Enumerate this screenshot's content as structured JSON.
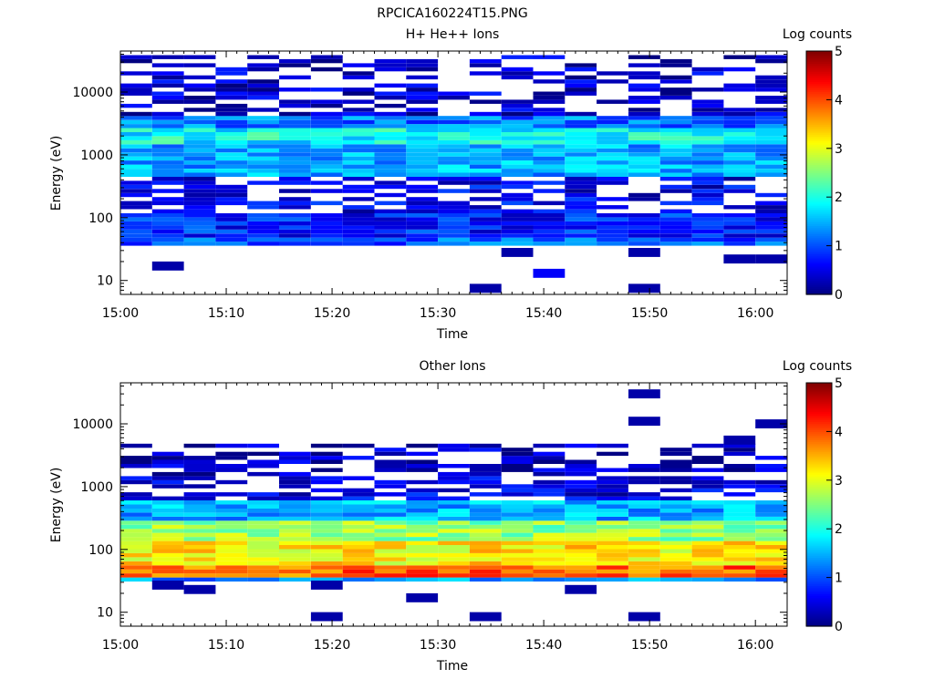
{
  "page_title": "RPCICA160224T15.PNG",
  "colorbar_ticks": [
    "0",
    "1",
    "2",
    "3",
    "4",
    "5"
  ],
  "chart_data": [
    {
      "type": "heatmap",
      "title": "H+ He++ Ions",
      "xlabel": "Time",
      "ylabel": "Energy (eV)",
      "colorbar_label": "Log counts",
      "colorscale": "jet",
      "zlim": [
        0,
        5
      ],
      "y_scale": "log",
      "ylim": [
        6,
        45000
      ],
      "xlim": [
        "15:00",
        "16:03"
      ],
      "x_ticks": [
        "15:00",
        "15:10",
        "15:20",
        "15:30",
        "15:40",
        "15:50",
        "16:00"
      ],
      "y_ticks": [
        "10",
        "100",
        "1000",
        "10000"
      ],
      "time_bins": [
        "15:00",
        "15:03",
        "15:06",
        "15:09",
        "15:12",
        "15:15",
        "15:18",
        "15:21",
        "15:24",
        "15:27",
        "15:30",
        "15:33",
        "15:36",
        "15:39",
        "15:42",
        "15:45",
        "15:48",
        "15:51",
        "15:54",
        "15:57",
        "16:00"
      ],
      "band_profile": [
        {
          "emin": 38,
          "emax": 50,
          "level": 1.1
        },
        {
          "emin": 50,
          "emax": 120,
          "level": 0.75
        },
        {
          "emin": 120,
          "emax": 450,
          "level": 0.55
        },
        {
          "emin": 450,
          "emax": 1400,
          "level": 1.45
        },
        {
          "emin": 1400,
          "emax": 2600,
          "level": 1.9
        },
        {
          "emin": 2600,
          "emax": 4200,
          "level": 1.2
        },
        {
          "emin": 4200,
          "emax": 40000,
          "level": 0.35
        }
      ],
      "sparse_points": [
        {
          "time": "15:03",
          "energy": 17,
          "level": 0.2
        },
        {
          "time": "15:33",
          "energy": 7.5,
          "level": 0.2
        },
        {
          "time": "15:36",
          "energy": 28,
          "level": 0.2
        },
        {
          "time": "15:39",
          "energy": 13,
          "level": 0.6
        },
        {
          "time": "15:48",
          "energy": 7.5,
          "level": 0.2
        },
        {
          "time": "15:48",
          "energy": 28,
          "level": 0.2
        },
        {
          "time": "15:57",
          "energy": 22,
          "level": 0.2
        },
        {
          "time": "16:00",
          "energy": 22,
          "level": 0.2
        }
      ]
    },
    {
      "type": "heatmap",
      "title": "Other Ions",
      "xlabel": "Time",
      "ylabel": "Energy (eV)",
      "colorbar_label": "Log counts",
      "colorscale": "jet",
      "zlim": [
        0,
        5
      ],
      "y_scale": "log",
      "ylim": [
        6,
        45000
      ],
      "xlim": [
        "15:00",
        "16:03"
      ],
      "x_ticks": [
        "15:00",
        "15:10",
        "15:20",
        "15:30",
        "15:40",
        "15:50",
        "16:00"
      ],
      "y_ticks": [
        "10",
        "100",
        "1000",
        "10000"
      ],
      "time_bins": [
        "15:00",
        "15:03",
        "15:06",
        "15:09",
        "15:12",
        "15:15",
        "15:18",
        "15:21",
        "15:24",
        "15:27",
        "15:30",
        "15:33",
        "15:36",
        "15:39",
        "15:42",
        "15:45",
        "15:48",
        "15:51",
        "15:54",
        "15:57",
        "16:00"
      ],
      "band_profile": [
        {
          "emin": 32,
          "emax": 38,
          "level": 1.3
        },
        {
          "emin": 38,
          "emax": 60,
          "level": 3.9
        },
        {
          "emin": 60,
          "emax": 130,
          "level": 3.2
        },
        {
          "emin": 130,
          "emax": 300,
          "level": 2.6
        },
        {
          "emin": 300,
          "emax": 600,
          "level": 1.5
        },
        {
          "emin": 600,
          "emax": 1400,
          "level": 0.5
        },
        {
          "emin": 1400,
          "emax": 5000,
          "level": 0.3
        }
      ],
      "sparse_points": [
        {
          "time": "15:03",
          "energy": 27,
          "level": 0.2
        },
        {
          "time": "15:06",
          "energy": 23,
          "level": 0.2
        },
        {
          "time": "15:18",
          "energy": 27,
          "level": 0.2
        },
        {
          "time": "15:18",
          "energy": 8.5,
          "level": 0.2
        },
        {
          "time": "15:27",
          "energy": 17,
          "level": 0.2
        },
        {
          "time": "15:33",
          "energy": 8.5,
          "level": 0.2
        },
        {
          "time": "15:42",
          "energy": 23,
          "level": 0.2
        },
        {
          "time": "15:48",
          "energy": 30000,
          "level": 0.2
        },
        {
          "time": "15:48",
          "energy": 11000,
          "level": 0.2
        },
        {
          "time": "15:48",
          "energy": 8.5,
          "level": 0.2
        },
        {
          "time": "15:57",
          "energy": 5500,
          "level": 0.2
        },
        {
          "time": "16:00",
          "energy": 10000,
          "level": 0.2
        }
      ]
    }
  ]
}
